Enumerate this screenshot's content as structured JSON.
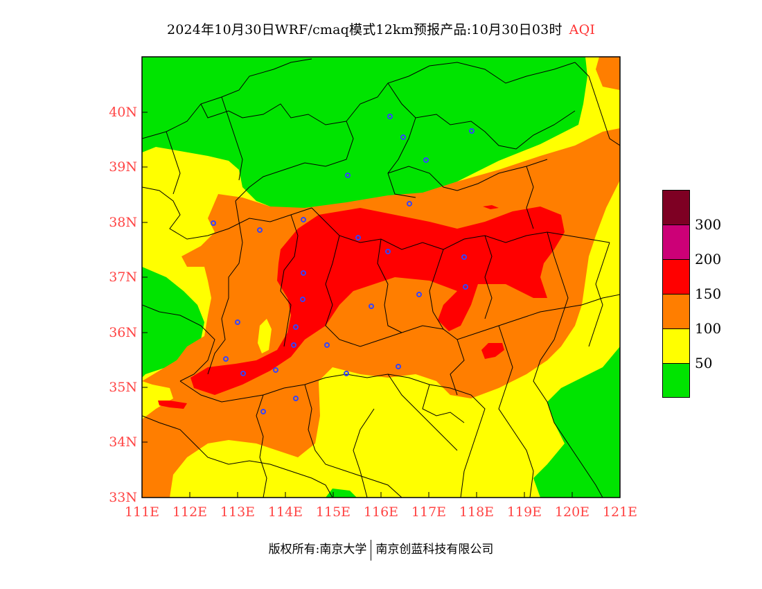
{
  "title": {
    "text": "2024年10月30日WRF/cmaq模式12km预报产品:10月30日03时",
    "variable": "AQI"
  },
  "map": {
    "lat_labels": [
      "40N",
      "39N",
      "38N",
      "37N",
      "36N",
      "35N",
      "34N",
      "33N"
    ],
    "lon_labels": [
      "111E",
      "112E",
      "113E",
      "114E",
      "115E",
      "116E",
      "117E",
      "118E",
      "119E",
      "120E",
      "121E"
    ],
    "colors": {
      "aqi_0_50": "#00e400",
      "aqi_50_100": "#ffff00",
      "aqi_100_150": "#ff7e00",
      "aqi_150_200": "#ff0000",
      "aqi_200_300": "#cc0077",
      "aqi_300_plus": "#7e0023",
      "label": "#ff4444",
      "station": "#3344ff"
    }
  },
  "legend": {
    "labels": [
      "300",
      "200",
      "150",
      "100",
      "50"
    ],
    "colors": [
      "#7e0023",
      "#cc0077",
      "#ff0000",
      "#ff7e00",
      "#ffff00",
      "#00e400"
    ]
  },
  "footer": {
    "copyright": "版权所有:南京大学",
    "company": "南京创蓝科技有限公司"
  }
}
